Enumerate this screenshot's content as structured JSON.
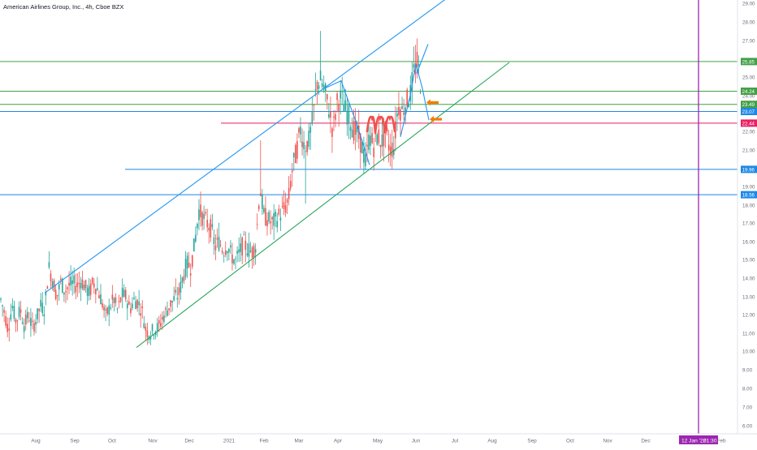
{
  "symbol_title": "American Airlines Group, Inc., 4h, Cboe BZX",
  "crosshair_date": "12 Jan '22",
  "crosshair_time": "01:30",
  "colors": {
    "up": "#26a69a",
    "down": "#ef5350",
    "green_level": "#43a047",
    "blue_level": "#1e88e5",
    "red_level": "#e91e63",
    "crosshair": "#9c27b0",
    "channel_upper": "#2196f3",
    "channel_lower": "#26a65b",
    "arrow": "#f57c00"
  },
  "chart_data": {
    "type": "candlestick",
    "x_tick_labels": [
      "Aug",
      "Sep",
      "Oct",
      "Nov",
      "Dec",
      "2021",
      "Feb",
      "Mar",
      "Apr",
      "May",
      "Jun",
      "Jul",
      "Aug",
      "Sep",
      "Oct",
      "Nov",
      "Dec",
      "Feb"
    ],
    "y_tick_labels": [
      "6.00",
      "7.00",
      "8.00",
      "9.00",
      "10.00",
      "11.00",
      "12.00",
      "13.00",
      "14.00",
      "15.00",
      "16.00",
      "17.00",
      "18.00",
      "19.00",
      "20.00",
      "21.00",
      "22.00",
      "23.00",
      "24.00",
      "25.00",
      "27.00",
      "28.00",
      "29.00"
    ],
    "ylim": [
      5.6,
      29.2
    ],
    "price_levels": [
      {
        "label": "25.85",
        "value": 25.85,
        "color": "green"
      },
      {
        "label": "24.24",
        "value": 24.24,
        "color": "green"
      },
      {
        "label": "23.49",
        "value": 23.49,
        "color": "green"
      },
      {
        "label": "23.07",
        "value": 23.07,
        "color": "blue"
      },
      {
        "label": "22.44",
        "value": 22.44,
        "color": "red"
      },
      {
        "label": "19.96",
        "value": 19.96,
        "color": "blue"
      },
      {
        "label": "18.56",
        "value": 18.56,
        "color": "blue"
      }
    ],
    "price_path": [
      [
        0,
        13.0
      ],
      [
        5,
        12.2
      ],
      [
        10,
        11.2
      ],
      [
        15,
        12.5
      ],
      [
        20,
        11.6
      ],
      [
        25,
        12.3
      ],
      [
        30,
        11.4
      ],
      [
        35,
        12.0
      ],
      [
        40,
        11.3
      ],
      [
        45,
        11.8
      ],
      [
        50,
        12.5
      ],
      [
        55,
        12.3
      ],
      [
        60,
        14.6
      ],
      [
        65,
        13.9
      ],
      [
        70,
        13.0
      ],
      [
        75,
        13.8
      ],
      [
        80,
        13.3
      ],
      [
        85,
        13.6
      ],
      [
        90,
        13.7
      ],
      [
        95,
        13.6
      ],
      [
        100,
        13.9
      ],
      [
        105,
        13.5
      ],
      [
        110,
        13.2
      ],
      [
        115,
        13.8
      ],
      [
        120,
        13.4
      ],
      [
        125,
        12.8
      ],
      [
        130,
        11.9
      ],
      [
        135,
        12.4
      ],
      [
        140,
        12.9
      ],
      [
        145,
        12.2
      ],
      [
        150,
        13.1
      ],
      [
        155,
        13.0
      ],
      [
        160,
        12.3
      ],
      [
        165,
        12.8
      ],
      [
        170,
        12.7
      ],
      [
        175,
        12.2
      ],
      [
        180,
        11.1
      ],
      [
        185,
        11.0
      ],
      [
        190,
        11.2
      ],
      [
        195,
        11.3
      ],
      [
        200,
        11.8
      ],
      [
        205,
        12.2
      ],
      [
        210,
        12.6
      ],
      [
        215,
        12.9
      ],
      [
        220,
        13.1
      ],
      [
        225,
        14.0
      ],
      [
        230,
        14.8
      ],
      [
        235,
        14.6
      ],
      [
        240,
        16.0
      ],
      [
        245,
        17.7
      ],
      [
        250,
        17.3
      ],
      [
        255,
        17.0
      ],
      [
        260,
        16.7
      ],
      [
        265,
        15.7
      ],
      [
        270,
        16.0
      ],
      [
        275,
        15.5
      ],
      [
        280,
        15.8
      ],
      [
        285,
        15.2
      ],
      [
        290,
        14.9
      ],
      [
        295,
        15.4
      ],
      [
        300,
        15.9
      ],
      [
        305,
        15.6
      ],
      [
        310,
        15.4
      ],
      [
        315,
        15.8
      ],
      [
        320,
        19.0
      ],
      [
        325,
        17.4
      ],
      [
        330,
        17.2
      ],
      [
        335,
        17.0
      ],
      [
        340,
        17.2
      ],
      [
        345,
        17.5
      ],
      [
        350,
        17.8
      ],
      [
        355,
        18.2
      ],
      [
        360,
        20.0
      ],
      [
        365,
        20.9
      ],
      [
        370,
        22.1
      ],
      [
        375,
        21.2
      ],
      [
        380,
        21.4
      ],
      [
        385,
        22.6
      ],
      [
        390,
        24.7
      ],
      [
        395,
        24.8
      ],
      [
        400,
        24.2
      ],
      [
        405,
        23.2
      ],
      [
        410,
        22.0
      ],
      [
        415,
        23.6
      ],
      [
        420,
        23.9
      ],
      [
        425,
        23.2
      ],
      [
        430,
        22.8
      ],
      [
        435,
        22.1
      ],
      [
        440,
        21.9
      ],
      [
        445,
        21.3
      ],
      [
        450,
        20.3
      ],
      [
        455,
        21.8
      ],
      [
        460,
        21.2
      ],
      [
        465,
        21.8
      ],
      [
        470,
        21.4
      ],
      [
        475,
        22.0
      ],
      [
        480,
        21.0
      ],
      [
        485,
        21.2
      ],
      [
        490,
        23.4
      ],
      [
        495,
        23.1
      ],
      [
        500,
        23.6
      ],
      [
        505,
        24.0
      ],
      [
        510,
        25.4
      ],
      [
        514,
        25.8
      ],
      [
        518,
        24.6
      ]
    ],
    "drawings": [
      {
        "type": "trend_channel_upper",
        "from": [
          55,
          13.2
        ],
        "to": [
          548,
          29.2
        ]
      },
      {
        "type": "trend_channel_lower",
        "from": [
          168,
          10.2
        ],
        "to": [
          627,
          25.8
        ]
      },
      {
        "type": "wave_line",
        "points": [
          [
            400,
            24.4
          ],
          [
            420,
            24.8
          ],
          [
            440,
            22.3
          ],
          [
            455,
            20.2
          ]
        ]
      },
      {
        "type": "wave_line",
        "points": [
          [
            493,
            21.7
          ],
          [
            505,
            24.0
          ],
          [
            512,
            25.7
          ],
          [
            520,
            24.4
          ],
          [
            528,
            22.6
          ]
        ]
      },
      {
        "type": "short_segment",
        "points": [
          [
            513,
            25.2
          ],
          [
            527,
            26.8
          ]
        ]
      },
      {
        "type": "marker_loops",
        "points": [
          [
            452,
            22.0
          ],
          [
            458,
            22.7
          ],
          [
            462,
            21.9
          ],
          [
            468,
            22.7
          ],
          [
            474,
            21.9
          ],
          [
            480,
            22.7
          ],
          [
            486,
            22.0
          ]
        ]
      },
      {
        "type": "arrow",
        "at": [
          528,
          23.6
        ],
        "direction": "left"
      },
      {
        "type": "arrow",
        "at": [
          532,
          22.65
        ],
        "direction": "left"
      }
    ]
  }
}
